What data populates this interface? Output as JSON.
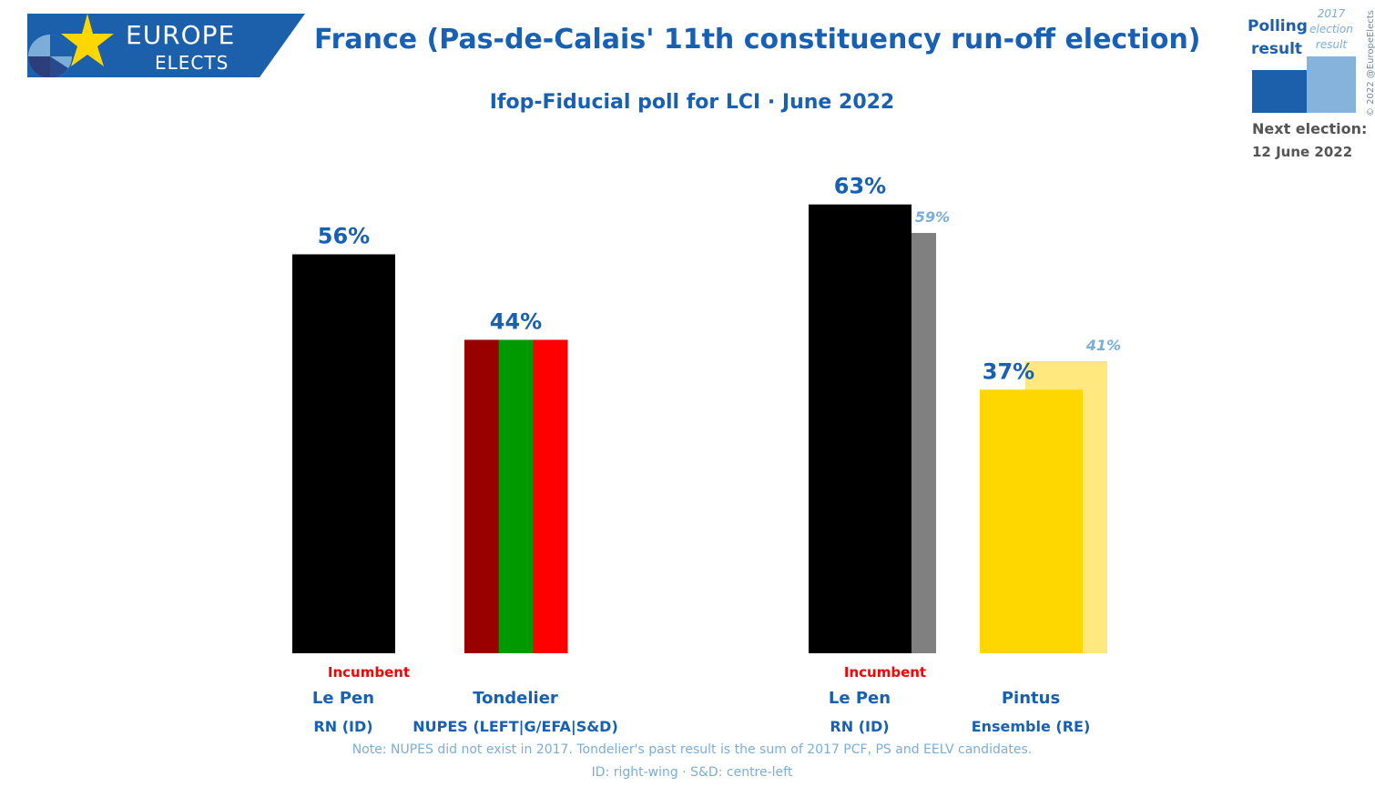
{
  "header": {
    "logo_line1": "EUROPE",
    "logo_line2": "ELECTS",
    "title": "France (Pas-de-Calais' 11th constituency run-off election)",
    "subtitle": "Ifop-Fiducial poll for LCI · June 2022"
  },
  "legend": {
    "polling_label": "Polling result",
    "previous_label": "2017 election result",
    "next_election_label": "Next election:",
    "next_election_date": "12 June 2022",
    "copyright": "© 2022 @EuropeElects"
  },
  "notes": {
    "line1": "Note: NUPES did not exist in 2017. Tondelier's past result is the sum of 2017 PCF, PS and EELV candidates.",
    "line2": "ID: right-wing · S&D: centre-left"
  },
  "colors": {
    "accent": "#1760b3",
    "logo_blue": "#1c5faa",
    "rn": "#000000",
    "rn_2017": "#808080",
    "nupes_stripes": [
      "#990000",
      "#009900",
      "#ff0000"
    ],
    "ensemble": "#ffd700",
    "ensemble_2017": "#ffe97f",
    "incumbent": "#ff0000"
  },
  "chart_data": [
    {
      "type": "bar",
      "y_unit": "%",
      "categories": [
        "Le Pen",
        "Tondelier"
      ],
      "parties": [
        "RN (ID)",
        "NUPES (LEFT|G/EFA|S&D)"
      ],
      "incumbent": [
        "Incumbent",
        ""
      ],
      "series": [
        {
          "values": [
            56,
            44
          ],
          "labels": [
            "56%",
            "44%"
          ]
        }
      ]
    },
    {
      "type": "bar",
      "y_unit": "%",
      "categories": [
        "Le Pen",
        "Pintus"
      ],
      "parties": [
        "RN (ID)",
        "Ensemble (RE)"
      ],
      "incumbent": [
        "Incumbent",
        ""
      ],
      "series": [
        {
          "values": [
            63,
            37
          ],
          "labels": [
            "63%",
            "37%"
          ]
        },
        {
          "values": [
            59,
            41
          ],
          "labels": [
            "59%",
            "41%"
          ]
        }
      ]
    }
  ]
}
